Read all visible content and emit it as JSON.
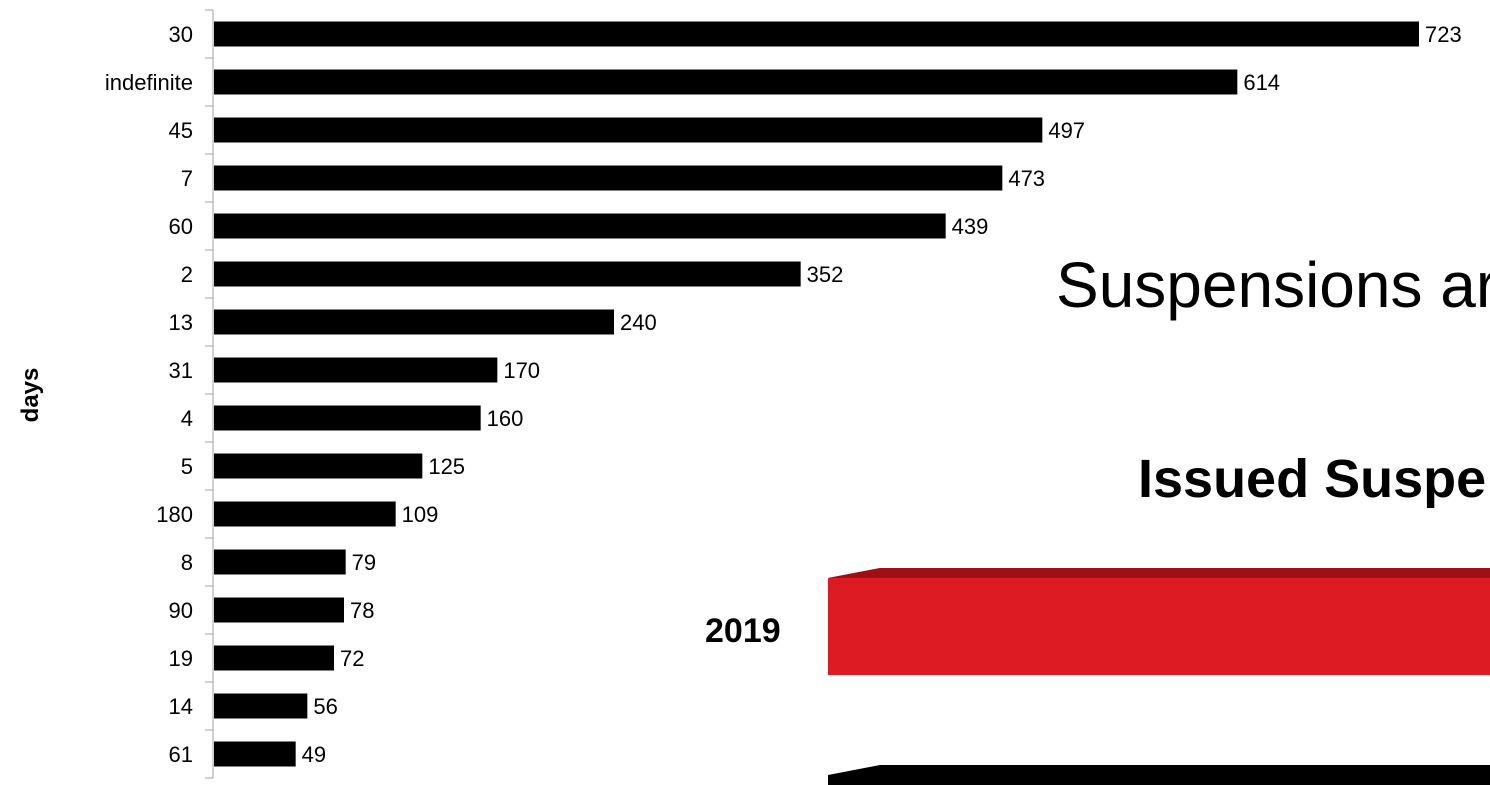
{
  "chart_data": {
    "type": "bar",
    "orientation": "horizontal",
    "categories": [
      "30",
      "indefinite",
      "45",
      "7",
      "60",
      "2",
      "13",
      "31",
      "4",
      "5",
      "180",
      "8",
      "90",
      "19",
      "14",
      "61"
    ],
    "values": [
      723,
      614,
      497,
      473,
      439,
      352,
      240,
      170,
      160,
      125,
      109,
      79,
      78,
      72,
      56,
      49
    ],
    "ylabel": "days",
    "xlim": [
      0,
      723
    ],
    "grid": false,
    "legend": "none",
    "bar_color": "#000000"
  },
  "overlay": {
    "title": "Suspensions ar",
    "subtitle": "Issued Suspe",
    "year_label": "2019",
    "bar_colors": {
      "top": "#dc1c22",
      "bottom": "#000000"
    }
  }
}
